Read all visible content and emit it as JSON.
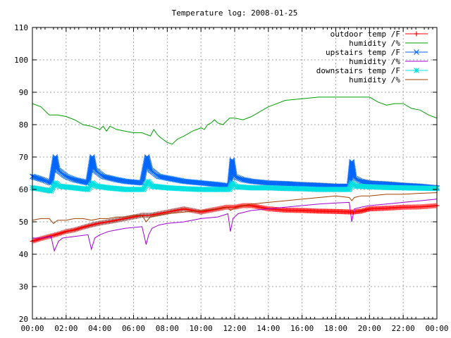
{
  "chart_data": {
    "type": "line",
    "title": "Temperature log: 2008-01-25",
    "xlabel": "",
    "ylabel": "",
    "x_unit": "hours",
    "xlim": [
      0,
      24
    ],
    "ylim": [
      20,
      110
    ],
    "xtick_labels": [
      "00:00",
      "02:00",
      "04:00",
      "06:00",
      "08:00",
      "10:00",
      "12:00",
      "14:00",
      "16:00",
      "18:00",
      "20:00",
      "22:00",
      "00:00"
    ],
    "ytick_labels": [
      "20",
      "30",
      "40",
      "50",
      "60",
      "70",
      "80",
      "90",
      "100",
      "110"
    ],
    "grid": true,
    "legend_position": "top-right",
    "series": [
      {
        "name": "outdoor temp /F",
        "color": "#ff0000",
        "marker": "plus",
        "x": [
          0,
          0.5,
          1,
          1.5,
          2,
          2.5,
          3,
          3.5,
          4,
          4.5,
          5,
          5.5,
          6,
          6.5,
          7,
          7.5,
          8,
          8.5,
          9,
          9.5,
          10,
          10.5,
          11,
          11.5,
          12,
          12.5,
          13,
          13.5,
          14,
          15,
          16,
          17,
          18,
          19,
          19.5,
          20,
          21,
          22,
          23,
          24
        ],
        "y": [
          44,
          44.8,
          45.5,
          46.2,
          47,
          47.5,
          48.3,
          49,
          49.6,
          50,
          50.5,
          51,
          51.5,
          52,
          52,
          52.5,
          53,
          53.5,
          54,
          53.5,
          53,
          53.5,
          54,
          54.5,
          54.5,
          55,
          55,
          54.5,
          54,
          53.6,
          53.5,
          53.3,
          53.2,
          53,
          53.3,
          54,
          54.2,
          54.5,
          54.6,
          55
        ]
      },
      {
        "name": "humidity /%",
        "color": "#00a000",
        "marker": "none",
        "x": [
          0,
          0.5,
          1,
          1.5,
          2,
          2.5,
          3,
          3.5,
          4,
          4.2,
          4.4,
          4.6,
          5,
          5.5,
          6,
          6.5,
          7,
          7.2,
          7.4,
          7.6,
          8,
          8.3,
          8.6,
          9,
          9.5,
          10,
          10.2,
          10.4,
          10.6,
          10.8,
          11,
          11.3,
          11.5,
          11.7,
          12,
          12.5,
          13,
          13.5,
          14,
          15,
          16,
          17,
          18,
          19,
          20,
          20.5,
          21,
          21.5,
          22,
          22.5,
          23,
          23.5,
          24
        ],
        "y": [
          86.5,
          85.5,
          83,
          83,
          82.5,
          81.5,
          80,
          79.5,
          78.5,
          79.5,
          78,
          79.5,
          78.5,
          78,
          77.5,
          77.5,
          76.5,
          78.5,
          77,
          76,
          74.5,
          74,
          75.5,
          76.5,
          78,
          79,
          78.5,
          80,
          80.5,
          81.5,
          80.5,
          80,
          81,
          82,
          82,
          81.5,
          82.5,
          84,
          85.5,
          87.5,
          88,
          88.5,
          88.5,
          88.5,
          88.5,
          87,
          86,
          86.5,
          86.5,
          85,
          84.5,
          83,
          82
        ]
      },
      {
        "name": "upstairs temp /F",
        "color": "#0066ff",
        "marker": "x",
        "x": [
          0,
          0.6,
          1.1,
          1.35,
          1.5,
          2,
          2.5,
          3.3,
          3.55,
          3.7,
          4.2,
          5,
          5.5,
          6.5,
          6.8,
          7,
          7.5,
          8,
          9,
          10,
          11,
          11.7,
          11.85,
          12,
          12.5,
          13,
          14,
          15,
          16,
          17,
          18,
          18.8,
          18.95,
          19.1,
          19.5,
          20,
          21,
          22,
          23,
          24
        ],
        "y": [
          64,
          63,
          62,
          70,
          66,
          64,
          63,
          62,
          70,
          66,
          64,
          63,
          62.5,
          62,
          70,
          66,
          64,
          63.5,
          62.5,
          62,
          61.5,
          61,
          69,
          64,
          63,
          62.5,
          62,
          61.8,
          61.5,
          61.3,
          61,
          61,
          68.5,
          63.5,
          62.5,
          62,
          61.7,
          61.3,
          61,
          60.5
        ]
      },
      {
        "name": "humidity /%",
        "color": "#a000d0",
        "marker": "none",
        "x": [
          0,
          0.6,
          1.1,
          1.3,
          1.55,
          1.8,
          2.5,
          3.3,
          3.5,
          3.7,
          4,
          4.5,
          5,
          5.5,
          6.5,
          6.75,
          6.9,
          7.1,
          7.5,
          8,
          9,
          10,
          11,
          11.6,
          11.75,
          11.9,
          12.2,
          13,
          14,
          15,
          16,
          17,
          18,
          18.8,
          18.95,
          19.1,
          19.5,
          20,
          21,
          22,
          23,
          24
        ],
        "y": [
          45,
          45,
          45.5,
          41,
          44,
          45,
          45.5,
          46,
          41.5,
          45,
          46,
          47,
          47.5,
          48,
          48.5,
          43,
          46,
          48,
          49,
          49.5,
          50,
          51,
          51.5,
          52.5,
          47,
          51,
          52.5,
          53.5,
          54,
          54.5,
          55,
          55.5,
          55.8,
          56,
          50,
          54,
          54.5,
          55,
          55.5,
          56,
          56.5,
          57
        ]
      },
      {
        "name": "downstairs temp /F",
        "color": "#00e0e0",
        "marker": "star",
        "x": [
          0,
          0.6,
          1.1,
          1.35,
          1.6,
          2.5,
          3.3,
          3.55,
          3.8,
          4.5,
          5.5,
          6.6,
          6.85,
          7.1,
          8,
          9,
          10,
          11,
          11.7,
          11.85,
          12.1,
          13,
          14,
          15,
          16,
          17,
          18,
          18.8,
          18.95,
          19.2,
          20,
          21,
          22,
          23,
          24
        ],
        "y": [
          60.5,
          60,
          59.5,
          62,
          61,
          60.5,
          60,
          62,
          61,
          60.5,
          60,
          60,
          62.5,
          61,
          60.5,
          60.2,
          60,
          60,
          60,
          62,
          60.8,
          60.5,
          60.5,
          60.3,
          60.2,
          60,
          60,
          60,
          62,
          61,
          60.8,
          60.6,
          60.5,
          60.4,
          60.3
        ]
      },
      {
        "name": "humidity /%",
        "color": "#a04000",
        "marker": "none",
        "x": [
          0,
          0.5,
          1,
          1.25,
          1.5,
          2,
          2.5,
          3,
          3.5,
          4,
          4.5,
          5,
          5.5,
          6,
          6.5,
          6.75,
          7,
          7.5,
          8,
          9,
          10,
          11,
          11.6,
          11.75,
          11.9,
          12.5,
          13,
          14,
          15,
          16,
          17,
          18,
          18.8,
          18.95,
          19.1,
          19.5,
          20,
          21,
          22,
          23,
          24
        ],
        "y": [
          50.5,
          51,
          51,
          49.5,
          50.5,
          50.5,
          51,
          51,
          50.5,
          51,
          51,
          51.5,
          51.5,
          52,
          52,
          50,
          51.5,
          52,
          52.5,
          53,
          53.5,
          54,
          54.5,
          53.5,
          54,
          55,
          55.5,
          56,
          56.5,
          57,
          57.5,
          58,
          57.5,
          56.5,
          57.5,
          58,
          58,
          58.5,
          58.5,
          58.8,
          59
        ]
      }
    ]
  }
}
